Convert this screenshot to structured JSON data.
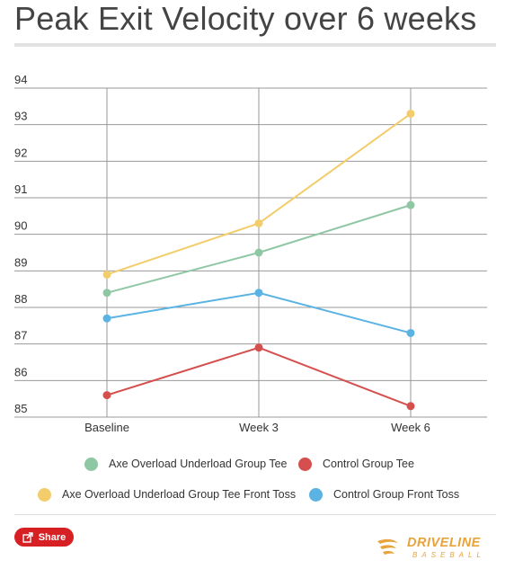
{
  "title": "Peak Exit Velocity over 6 weeks",
  "share_label": "Share",
  "share_icon": "share-icon",
  "logo": {
    "main": "DRIVELINE",
    "sub": "BASEBALL"
  },
  "colors": {
    "grid": "#999999",
    "axis_text": "#333333"
  },
  "chart_data": {
    "type": "line",
    "title": "Peak Exit Velocity over 6 weeks",
    "categories": [
      "Baseline",
      "Week 3",
      "Week 6"
    ],
    "ylim": [
      85,
      94
    ],
    "yticks": [
      85,
      86,
      87,
      88,
      89,
      90,
      91,
      92,
      93,
      94
    ],
    "grid": true,
    "legend_position": "bottom",
    "series": [
      {
        "name": "Axe Overload Underload Group Tee",
        "color": "#8fc7a4",
        "values": [
          88.4,
          89.5,
          90.8
        ]
      },
      {
        "name": "Control Group Tee",
        "color": "#d64f4f",
        "values": [
          85.6,
          86.9,
          85.3
        ]
      },
      {
        "name": "Axe Overload Underload Group Tee Front Toss",
        "color": "#f3cd6b",
        "values": [
          88.9,
          90.3,
          93.3
        ]
      },
      {
        "name": "Control Group Front Toss",
        "color": "#5ab3e3",
        "values": [
          87.7,
          88.4,
          87.3
        ]
      }
    ]
  }
}
